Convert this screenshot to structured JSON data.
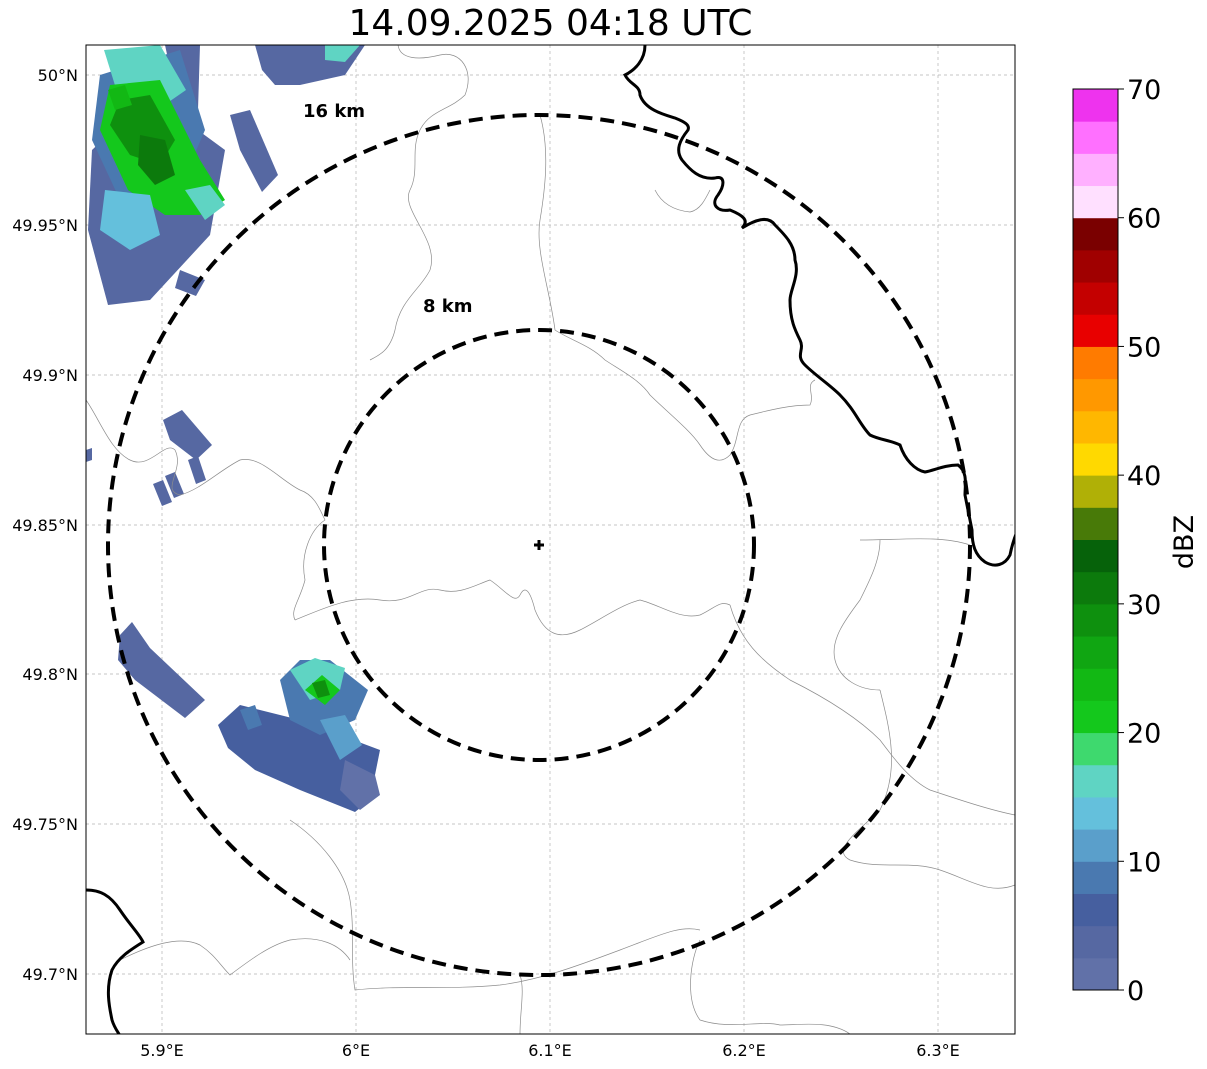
{
  "title": "14.09.2025 04:18 UTC",
  "lon_ticks": [
    "5.9°E",
    "6°E",
    "6.1°E",
    "6.2°E",
    "6.3°E"
  ],
  "lat_ticks": [
    "50°N",
    "49.95°N",
    "49.9°N",
    "49.85°N",
    "49.8°N",
    "49.75°N",
    "49.7°N"
  ],
  "range_rings": [
    {
      "label": "16 km",
      "radius_km": 16
    },
    {
      "label": "8 km",
      "radius_km": 8
    }
  ],
  "radar_site": {
    "lon": 6.096,
    "lat": 49.844
  },
  "colorbar": {
    "label": "dBZ",
    "ticks": [
      "0",
      "10",
      "20",
      "30",
      "40",
      "50",
      "60",
      "70"
    ],
    "min": 0,
    "max": 70,
    "step": 2.5,
    "colors": [
      "#6171a8",
      "#5668a2",
      "#465f9f",
      "#4a79b0",
      "#5a9fcb",
      "#64c0dc",
      "#5fd4c3",
      "#3ed96e",
      "#14c81c",
      "#12b814",
      "#10a612",
      "#0e900e",
      "#0c7a0c",
      "#06620a",
      "#487a08",
      "#b0b006",
      "#ffd900",
      "#ffb700",
      "#ff9800",
      "#ff7b00",
      "#e80000",
      "#c40000",
      "#a00000",
      "#7a0000",
      "#ffe0ff",
      "#ffb0ff",
      "#ff70ff",
      "#ee33ee"
    ]
  },
  "colors": {
    "ring": "#000000",
    "border": "#000000",
    "admin": "#8c8c8c",
    "grid": "#b4b4b4"
  }
}
